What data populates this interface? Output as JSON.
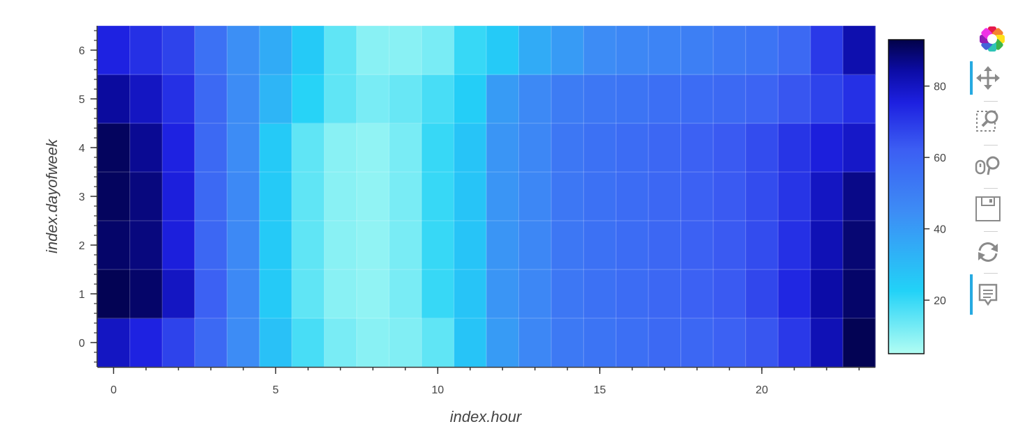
{
  "chart_data": {
    "type": "heatmap",
    "xlabel": "index.hour",
    "ylabel": "index.dayofweek",
    "x": [
      0,
      1,
      2,
      3,
      4,
      5,
      6,
      7,
      8,
      9,
      10,
      11,
      12,
      13,
      14,
      15,
      16,
      17,
      18,
      19,
      20,
      21,
      22,
      23
    ],
    "y": [
      0,
      1,
      2,
      3,
      4,
      5,
      6
    ],
    "xlim": [
      -0.5,
      23.5
    ],
    "ylim": [
      -0.5,
      6.5
    ],
    "x_ticks": [
      "0",
      "5",
      "10",
      "15",
      "20"
    ],
    "y_ticks": [
      "0",
      "1",
      "2",
      "3",
      "4",
      "5",
      "6"
    ],
    "values": [
      [
        80,
        75,
        68,
        58,
        45,
        28,
        18,
        12,
        10,
        11,
        15,
        27,
        40,
        47,
        52,
        54,
        56,
        58,
        59,
        61,
        64,
        70,
        82,
        92
      ],
      [
        92,
        90,
        80,
        61,
        46,
        25,
        15,
        10,
        9,
        12,
        20,
        27,
        42,
        47,
        53,
        55,
        57,
        59,
        61,
        63,
        67,
        74,
        84,
        90
      ],
      [
        90,
        88,
        76,
        59,
        46,
        25,
        15,
        10,
        9,
        12,
        20,
        27,
        42,
        47,
        53,
        55,
        57,
        59,
        61,
        63,
        66,
        72,
        82,
        89
      ],
      [
        91,
        88,
        76,
        58,
        46,
        25,
        15,
        10,
        9,
        12,
        20,
        27,
        42,
        47,
        53,
        55,
        57,
        59,
        61,
        63,
        66,
        71,
        80,
        87
      ],
      [
        91,
        86,
        75,
        58,
        45,
        25,
        15,
        10,
        9,
        12,
        20,
        27,
        42,
        47,
        53,
        55,
        57,
        59,
        61,
        63,
        66,
        71,
        76,
        79
      ],
      [
        85,
        80,
        72,
        58,
        45,
        32,
        22,
        15,
        12,
        14,
        18,
        24,
        40,
        46,
        51,
        53,
        54,
        56,
        57,
        58,
        60,
        64,
        68,
        72
      ],
      [
        75,
        72,
        68,
        55,
        44,
        35,
        25,
        15,
        10,
        10,
        12,
        20,
        25,
        35,
        40,
        45,
        47,
        48,
        50,
        52,
        54,
        58,
        70,
        83
      ]
    ],
    "color_range": [
      5,
      93
    ],
    "colorbar_ticks": [
      "20",
      "40",
      "60",
      "80"
    ],
    "colormap": "kbc_r",
    "grid": true,
    "colorbar_position": "right"
  },
  "toolbar": {
    "tools": [
      "bokeh-logo",
      "pan-tool",
      "box-zoom-tool",
      "wheel-zoom-tool",
      "save-tool",
      "reset-tool",
      "hover-tool"
    ],
    "accent_color": "#26aae1"
  }
}
